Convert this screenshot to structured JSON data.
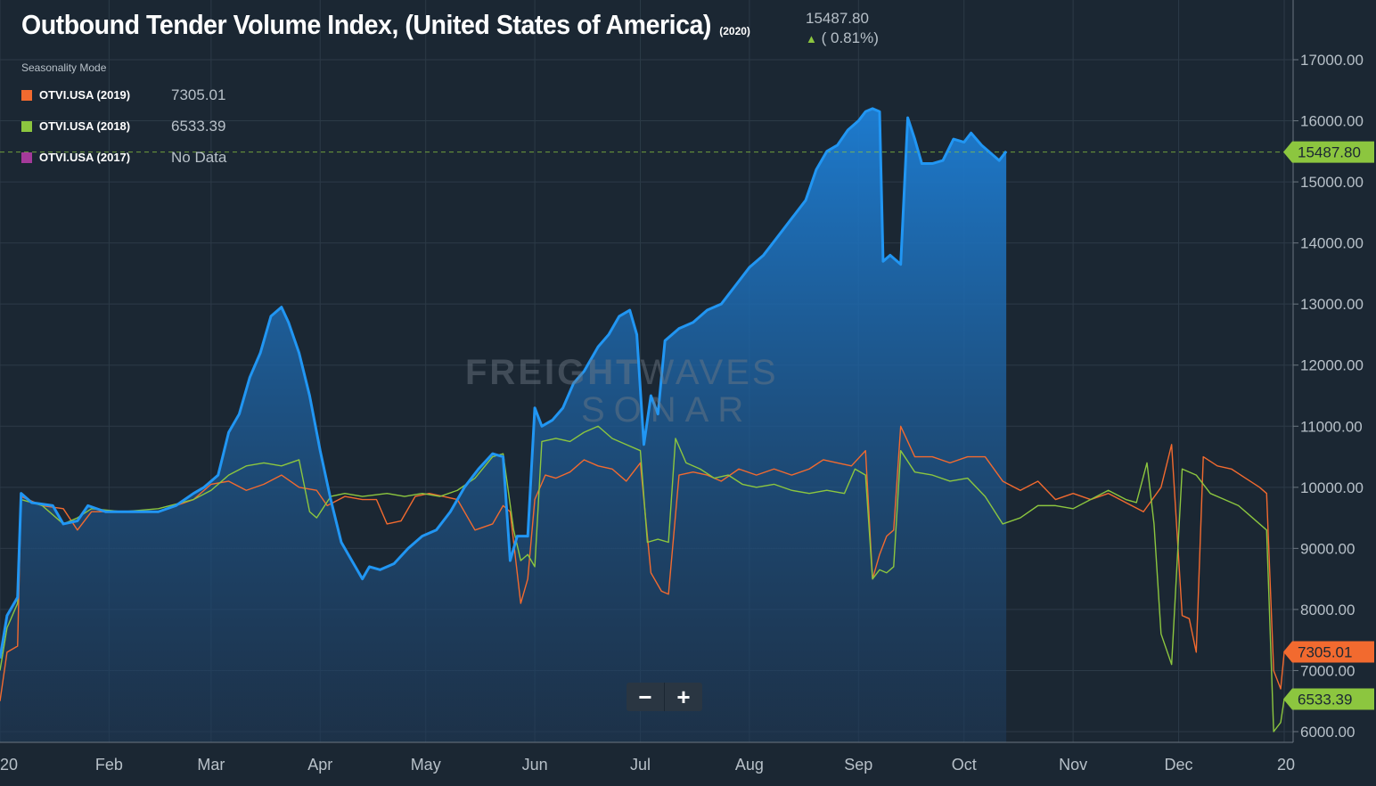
{
  "header": {
    "title": "Outbound Tender Volume Index, (United States of America)",
    "year_tag": "(2020)",
    "last_value": "15487.80",
    "change": "( 0.81%)",
    "change_direction": "up"
  },
  "legend": {
    "mode_label": "Seasonality Mode",
    "items": [
      {
        "name": "OTVI.USA (2019)",
        "value": "7305.01",
        "color": "#f26a2f"
      },
      {
        "name": "OTVI.USA (2018)",
        "value": "6533.39",
        "color": "#8cc63f"
      },
      {
        "name": "OTVI.USA (2017)",
        "value": "No Data",
        "color": "#a43a9a"
      }
    ]
  },
  "watermark": {
    "brand_bold": "FREIGHT",
    "brand_thin": "WAVES",
    "product": "SONAR"
  },
  "zoom": {
    "minus": "−",
    "plus": "+"
  },
  "price_tags": [
    {
      "label": "15487.80",
      "value": 15487.8,
      "bg": "#8cc63f",
      "fg": "#1b2733"
    },
    {
      "label": "7305.01",
      "value": 7305.01,
      "bg": "#f26a2f",
      "fg": "#1b2733"
    },
    {
      "label": "6533.39",
      "value": 6533.39,
      "bg": "#8cc63f",
      "fg": "#1b2733"
    }
  ],
  "colors": {
    "s2020": "#2196f3",
    "s2019": "#f26a2f",
    "s2018": "#8cc63f",
    "grid": "#2c3a47",
    "background": "#1b2733"
  },
  "chart_data": {
    "type": "line",
    "ylim": [
      5800,
      17600
    ],
    "y_ticks": [
      6000,
      7000,
      8000,
      9000,
      10000,
      11000,
      12000,
      13000,
      14000,
      15000,
      16000,
      17000
    ],
    "y_tick_labels": [
      "6000.00",
      "7000.00",
      "8000.00",
      "9000.00",
      "10000.00",
      "11000.00",
      "12000.00",
      "13000.00",
      "14000.00",
      "15000.00",
      "16000.00",
      "17000.00"
    ],
    "x_range": [
      0,
      365
    ],
    "x_ticks": [
      {
        "day": 0,
        "label": "20"
      },
      {
        "day": 31,
        "label": "Feb"
      },
      {
        "day": 60,
        "label": "Mar"
      },
      {
        "day": 91,
        "label": "Apr"
      },
      {
        "day": 121,
        "label": "May"
      },
      {
        "day": 152,
        "label": "Jun"
      },
      {
        "day": 182,
        "label": "Jul"
      },
      {
        "day": 213,
        "label": "Aug"
      },
      {
        "day": 244,
        "label": "Sep"
      },
      {
        "day": 274,
        "label": "Oct"
      },
      {
        "day": 305,
        "label": "Nov"
      },
      {
        "day": 335,
        "label": "Dec"
      },
      {
        "day": 365,
        "label": "20"
      }
    ],
    "reference_line": 15487.8,
    "series": [
      {
        "name": "OTVI.USA (2020)",
        "fill": true,
        "points": [
          [
            0,
            7200
          ],
          [
            2,
            7900
          ],
          [
            5,
            8200
          ],
          [
            6,
            9900
          ],
          [
            9,
            9750
          ],
          [
            15,
            9700
          ],
          [
            18,
            9400
          ],
          [
            22,
            9450
          ],
          [
            25,
            9700
          ],
          [
            30,
            9600
          ],
          [
            40,
            9600
          ],
          [
            45,
            9600
          ],
          [
            50,
            9700
          ],
          [
            55,
            9900
          ],
          [
            58,
            10000
          ],
          [
            62,
            10200
          ],
          [
            65,
            10900
          ],
          [
            68,
            11200
          ],
          [
            71,
            11800
          ],
          [
            74,
            12200
          ],
          [
            77,
            12800
          ],
          [
            80,
            12950
          ],
          [
            82,
            12700
          ],
          [
            85,
            12200
          ],
          [
            88,
            11500
          ],
          [
            91,
            10600
          ],
          [
            94,
            9800
          ],
          [
            97,
            9100
          ],
          [
            100,
            8800
          ],
          [
            103,
            8500
          ],
          [
            105,
            8700
          ],
          [
            108,
            8650
          ],
          [
            112,
            8750
          ],
          [
            116,
            9000
          ],
          [
            120,
            9200
          ],
          [
            124,
            9300
          ],
          [
            128,
            9600
          ],
          [
            132,
            10000
          ],
          [
            136,
            10300
          ],
          [
            140,
            10550
          ],
          [
            143,
            10500
          ],
          [
            145,
            8800
          ],
          [
            147,
            9200
          ],
          [
            150,
            9200
          ],
          [
            152,
            11300
          ],
          [
            154,
            11000
          ],
          [
            157,
            11100
          ],
          [
            160,
            11300
          ],
          [
            163,
            11700
          ],
          [
            166,
            11900
          ],
          [
            170,
            12300
          ],
          [
            173,
            12500
          ],
          [
            176,
            12800
          ],
          [
            179,
            12900
          ],
          [
            181,
            12500
          ],
          [
            183,
            10700
          ],
          [
            185,
            11500
          ],
          [
            187,
            11200
          ],
          [
            189,
            12400
          ],
          [
            193,
            12600
          ],
          [
            197,
            12700
          ],
          [
            201,
            12900
          ],
          [
            205,
            13000
          ],
          [
            209,
            13300
          ],
          [
            213,
            13600
          ],
          [
            217,
            13800
          ],
          [
            221,
            14100
          ],
          [
            225,
            14400
          ],
          [
            229,
            14700
          ],
          [
            232,
            15200
          ],
          [
            235,
            15500
          ],
          [
            238,
            15600
          ],
          [
            241,
            15850
          ],
          [
            244,
            16000
          ],
          [
            246,
            16150
          ],
          [
            248,
            16200
          ],
          [
            250,
            16150
          ],
          [
            251,
            13700
          ],
          [
            253,
            13800
          ],
          [
            256,
            13650
          ],
          [
            258,
            16050
          ],
          [
            260,
            15700
          ],
          [
            262,
            15300
          ],
          [
            265,
            15300
          ],
          [
            268,
            15350
          ],
          [
            271,
            15700
          ],
          [
            274,
            15650
          ],
          [
            276,
            15800
          ],
          [
            279,
            15600
          ],
          [
            282,
            15450
          ],
          [
            284,
            15350
          ],
          [
            286,
            15500
          ]
        ]
      },
      {
        "name": "OTVI.USA (2019)",
        "fill": false,
        "points": [
          [
            0,
            6500
          ],
          [
            2,
            7300
          ],
          [
            5,
            7400
          ],
          [
            6,
            9850
          ],
          [
            12,
            9700
          ],
          [
            18,
            9650
          ],
          [
            22,
            9300
          ],
          [
            26,
            9600
          ],
          [
            35,
            9600
          ],
          [
            45,
            9600
          ],
          [
            55,
            9800
          ],
          [
            60,
            10050
          ],
          [
            65,
            10100
          ],
          [
            70,
            9950
          ],
          [
            75,
            10050
          ],
          [
            80,
            10200
          ],
          [
            85,
            10000
          ],
          [
            90,
            9950
          ],
          [
            93,
            9700
          ],
          [
            98,
            9850
          ],
          [
            103,
            9800
          ],
          [
            107,
            9800
          ],
          [
            110,
            9400
          ],
          [
            114,
            9450
          ],
          [
            118,
            9850
          ],
          [
            122,
            9900
          ],
          [
            126,
            9850
          ],
          [
            130,
            9800
          ],
          [
            135,
            9300
          ],
          [
            140,
            9400
          ],
          [
            143,
            9700
          ],
          [
            145,
            9600
          ],
          [
            148,
            8100
          ],
          [
            150,
            8500
          ],
          [
            152,
            9800
          ],
          [
            155,
            10200
          ],
          [
            158,
            10150
          ],
          [
            162,
            10250
          ],
          [
            166,
            10450
          ],
          [
            170,
            10350
          ],
          [
            174,
            10300
          ],
          [
            178,
            10100
          ],
          [
            182,
            10400
          ],
          [
            185,
            8600
          ],
          [
            188,
            8300
          ],
          [
            190,
            8250
          ],
          [
            193,
            10200
          ],
          [
            197,
            10250
          ],
          [
            201,
            10200
          ],
          [
            205,
            10100
          ],
          [
            210,
            10300
          ],
          [
            215,
            10200
          ],
          [
            220,
            10300
          ],
          [
            225,
            10200
          ],
          [
            230,
            10300
          ],
          [
            234,
            10450
          ],
          [
            238,
            10400
          ],
          [
            242,
            10350
          ],
          [
            246,
            10600
          ],
          [
            248,
            8500
          ],
          [
            250,
            8900
          ],
          [
            252,
            9200
          ],
          [
            254,
            9300
          ],
          [
            256,
            11000
          ],
          [
            260,
            10500
          ],
          [
            265,
            10500
          ],
          [
            270,
            10400
          ],
          [
            275,
            10500
          ],
          [
            280,
            10500
          ],
          [
            285,
            10100
          ],
          [
            290,
            9950
          ],
          [
            295,
            10100
          ],
          [
            300,
            9800
          ],
          [
            305,
            9900
          ],
          [
            310,
            9800
          ],
          [
            315,
            9900
          ],
          [
            320,
            9750
          ],
          [
            325,
            9600
          ],
          [
            330,
            10000
          ],
          [
            333,
            10700
          ],
          [
            336,
            7900
          ],
          [
            338,
            7850
          ],
          [
            340,
            7300
          ],
          [
            342,
            10500
          ],
          [
            346,
            10350
          ],
          [
            350,
            10300
          ],
          [
            354,
            10150
          ],
          [
            358,
            10000
          ],
          [
            360,
            9900
          ],
          [
            362,
            7000
          ],
          [
            364,
            6700
          ],
          [
            365,
            7300
          ]
        ]
      },
      {
        "name": "OTVI.USA (2018)",
        "fill": false,
        "points": [
          [
            0,
            7000
          ],
          [
            2,
            7700
          ],
          [
            5,
            8100
          ],
          [
            6,
            9800
          ],
          [
            12,
            9700
          ],
          [
            18,
            9400
          ],
          [
            22,
            9500
          ],
          [
            26,
            9650
          ],
          [
            35,
            9600
          ],
          [
            45,
            9650
          ],
          [
            55,
            9800
          ],
          [
            60,
            9950
          ],
          [
            65,
            10200
          ],
          [
            70,
            10350
          ],
          [
            75,
            10400
          ],
          [
            80,
            10350
          ],
          [
            85,
            10450
          ],
          [
            88,
            9600
          ],
          [
            90,
            9500
          ],
          [
            94,
            9850
          ],
          [
            98,
            9900
          ],
          [
            103,
            9850
          ],
          [
            110,
            9900
          ],
          [
            115,
            9850
          ],
          [
            120,
            9900
          ],
          [
            125,
            9850
          ],
          [
            130,
            9950
          ],
          [
            135,
            10150
          ],
          [
            140,
            10500
          ],
          [
            143,
            10550
          ],
          [
            146,
            9300
          ],
          [
            148,
            8800
          ],
          [
            150,
            8900
          ],
          [
            152,
            8700
          ],
          [
            154,
            10750
          ],
          [
            158,
            10800
          ],
          [
            162,
            10750
          ],
          [
            166,
            10900
          ],
          [
            170,
            11000
          ],
          [
            174,
            10800
          ],
          [
            178,
            10700
          ],
          [
            182,
            10600
          ],
          [
            184,
            9100
          ],
          [
            187,
            9150
          ],
          [
            190,
            9100
          ],
          [
            192,
            10800
          ],
          [
            195,
            10400
          ],
          [
            199,
            10300
          ],
          [
            203,
            10150
          ],
          [
            207,
            10200
          ],
          [
            211,
            10050
          ],
          [
            215,
            10000
          ],
          [
            220,
            10050
          ],
          [
            225,
            9950
          ],
          [
            230,
            9900
          ],
          [
            235,
            9950
          ],
          [
            240,
            9900
          ],
          [
            243,
            10300
          ],
          [
            246,
            10200
          ],
          [
            248,
            8500
          ],
          [
            250,
            8650
          ],
          [
            252,
            8600
          ],
          [
            254,
            8700
          ],
          [
            256,
            10600
          ],
          [
            260,
            10250
          ],
          [
            265,
            10200
          ],
          [
            270,
            10100
          ],
          [
            275,
            10150
          ],
          [
            280,
            9850
          ],
          [
            285,
            9400
          ],
          [
            290,
            9500
          ],
          [
            295,
            9700
          ],
          [
            300,
            9700
          ],
          [
            305,
            9650
          ],
          [
            310,
            9800
          ],
          [
            315,
            9950
          ],
          [
            320,
            9800
          ],
          [
            323,
            9750
          ],
          [
            326,
            10400
          ],
          [
            328,
            9400
          ],
          [
            330,
            7600
          ],
          [
            333,
            7100
          ],
          [
            336,
            10300
          ],
          [
            340,
            10200
          ],
          [
            344,
            9900
          ],
          [
            348,
            9800
          ],
          [
            352,
            9700
          ],
          [
            356,
            9500
          ],
          [
            360,
            9300
          ],
          [
            362,
            6000
          ],
          [
            364,
            6150
          ],
          [
            365,
            6533
          ]
        ]
      }
    ]
  }
}
